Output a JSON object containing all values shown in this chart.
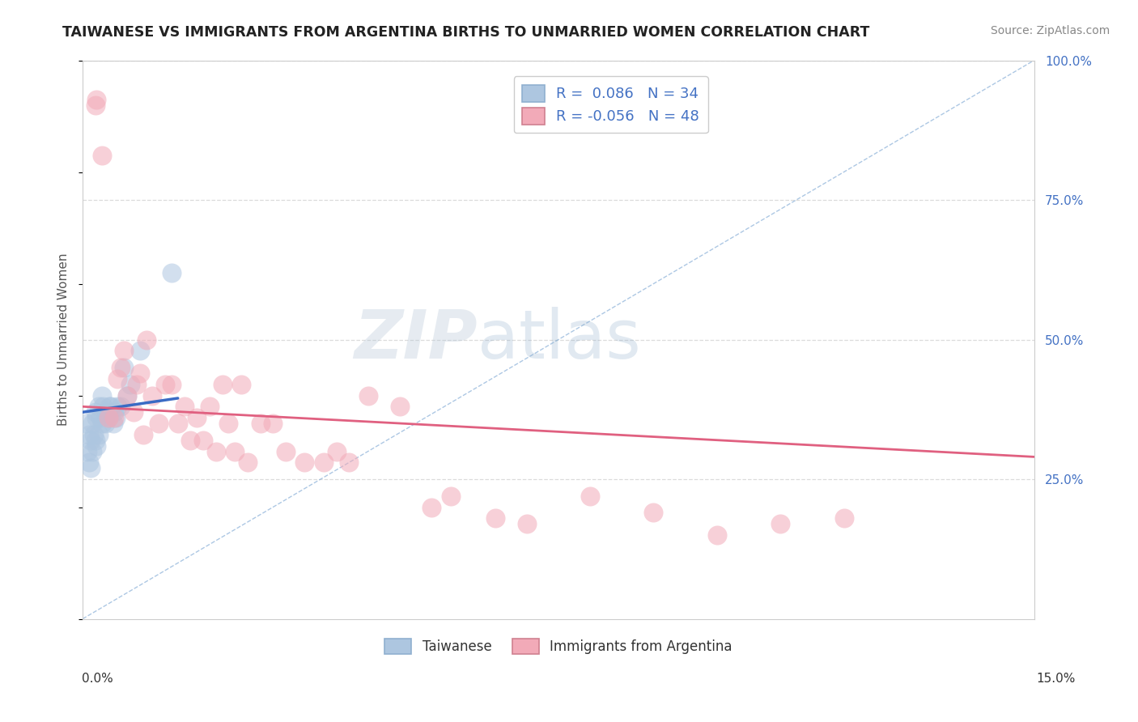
{
  "title": "TAIWANESE VS IMMIGRANTS FROM ARGENTINA BIRTHS TO UNMARRIED WOMEN CORRELATION CHART",
  "source_text": "Source: ZipAtlas.com",
  "ylabel": "Births to Unmarried Women",
  "xlim": [
    0.0,
    15.0
  ],
  "ylim": [
    0.0,
    100.0
  ],
  "watermark_zip": "ZIP",
  "watermark_atlas": "atlas",
  "legend_r_blue": "R =  0.086",
  "legend_n_blue": "N = 34",
  "legend_r_pink": "R = -0.056",
  "legend_n_pink": "N = 48",
  "taiwanese_x": [
    0.05,
    0.08,
    0.1,
    0.1,
    0.12,
    0.13,
    0.15,
    0.15,
    0.18,
    0.2,
    0.2,
    0.22,
    0.22,
    0.25,
    0.25,
    0.28,
    0.3,
    0.3,
    0.32,
    0.35,
    0.38,
    0.4,
    0.42,
    0.45,
    0.48,
    0.5,
    0.52,
    0.55,
    0.6,
    0.65,
    0.7,
    0.75,
    0.9,
    1.4
  ],
  "taiwanese_y": [
    35.0,
    30.0,
    33.0,
    28.0,
    32.0,
    27.0,
    35.0,
    30.0,
    33.0,
    37.0,
    32.0,
    36.0,
    31.0,
    38.0,
    33.0,
    36.0,
    40.0,
    35.0,
    38.0,
    35.0,
    37.0,
    36.0,
    38.0,
    38.0,
    35.0,
    37.0,
    36.0,
    38.0,
    38.0,
    45.0,
    40.0,
    42.0,
    48.0,
    62.0
  ],
  "argentina_x": [
    0.2,
    0.22,
    0.3,
    0.4,
    0.5,
    0.55,
    0.6,
    0.65,
    0.7,
    0.8,
    0.85,
    0.9,
    0.95,
    1.0,
    1.1,
    1.2,
    1.3,
    1.4,
    1.5,
    1.6,
    1.7,
    1.8,
    1.9,
    2.0,
    2.1,
    2.2,
    2.3,
    2.4,
    2.5,
    2.6,
    2.8,
    3.0,
    3.2,
    3.5,
    3.8,
    4.0,
    4.2,
    4.5,
    5.0,
    5.5,
    5.8,
    6.5,
    7.0,
    8.0,
    9.0,
    10.0,
    11.0,
    12.0
  ],
  "argentina_y": [
    92.0,
    93.0,
    83.0,
    36.0,
    36.0,
    43.0,
    45.0,
    48.0,
    40.0,
    37.0,
    42.0,
    44.0,
    33.0,
    50.0,
    40.0,
    35.0,
    42.0,
    42.0,
    35.0,
    38.0,
    32.0,
    36.0,
    32.0,
    38.0,
    30.0,
    42.0,
    35.0,
    30.0,
    42.0,
    28.0,
    35.0,
    35.0,
    30.0,
    28.0,
    28.0,
    30.0,
    28.0,
    40.0,
    38.0,
    20.0,
    22.0,
    18.0,
    17.0,
    22.0,
    19.0,
    15.0,
    17.0,
    18.0
  ],
  "blue_color": "#adc6e0",
  "pink_color": "#f2aab8",
  "trend_blue_color": "#3a6bc4",
  "trend_pink_color": "#e06080",
  "diag_line_color": "#8ab0d8",
  "grid_color": "#d8d8d8",
  "background_color": "#ffffff",
  "title_color": "#222222",
  "source_color": "#888888",
  "ylabel_color": "#555555",
  "right_tick_color": "#4472c4",
  "blue_trend_x": [
    0.0,
    1.5
  ],
  "blue_trend_y": [
    37.0,
    39.5
  ],
  "pink_trend_x": [
    0.0,
    15.0
  ],
  "pink_trend_y": [
    38.0,
    29.0
  ]
}
